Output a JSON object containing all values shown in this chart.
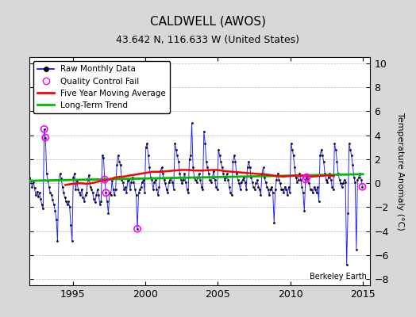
{
  "title": "CALDWELL (AWOS)",
  "subtitle": "43.642 N, 116.633 W (United States)",
  "ylabel": "Temperature Anomaly (°C)",
  "watermark": "Berkeley Earth",
  "xlim": [
    1992.0,
    2015.5
  ],
  "ylim": [
    -8.5,
    10.5
  ],
  "yticks": [
    -8,
    -6,
    -4,
    -2,
    0,
    2,
    4,
    6,
    8,
    10
  ],
  "xticks": [
    1995,
    2000,
    2005,
    2010,
    2015
  ],
  "fig_bg": "#d8d8d8",
  "plot_bg": "#ffffff",
  "raw_color": "#0000ff",
  "dot_color": "#000000",
  "ma_color": "#ff0000",
  "trend_color": "#00bb00",
  "qc_color": "#ff00ff",
  "raw_monthly": [
    [
      1992.0417,
      0.5
    ],
    [
      1992.125,
      0.2
    ],
    [
      1992.2083,
      -0.3
    ],
    [
      1992.2917,
      0.1
    ],
    [
      1992.375,
      -0.4
    ],
    [
      1992.4583,
      -1.0
    ],
    [
      1992.5417,
      -0.7
    ],
    [
      1992.625,
      -1.1
    ],
    [
      1992.7083,
      -0.8
    ],
    [
      1992.7917,
      -1.3
    ],
    [
      1992.875,
      -1.8
    ],
    [
      1992.9583,
      -2.1
    ],
    [
      1993.0417,
      4.5
    ],
    [
      1993.125,
      3.8
    ],
    [
      1993.2083,
      0.8
    ],
    [
      1993.2917,
      0.2
    ],
    [
      1993.375,
      -0.3
    ],
    [
      1993.4583,
      -0.8
    ],
    [
      1993.5417,
      -1.0
    ],
    [
      1993.625,
      -1.4
    ],
    [
      1993.7083,
      -1.8
    ],
    [
      1993.7917,
      -2.3
    ],
    [
      1993.875,
      -3.0
    ],
    [
      1993.9583,
      -4.8
    ],
    [
      1994.0417,
      0.3
    ],
    [
      1994.125,
      0.8
    ],
    [
      1994.2083,
      0.4
    ],
    [
      1994.2917,
      -0.3
    ],
    [
      1994.375,
      -0.8
    ],
    [
      1994.4583,
      -1.2
    ],
    [
      1994.5417,
      -1.5
    ],
    [
      1994.625,
      -1.8
    ],
    [
      1994.7083,
      -1.5
    ],
    [
      1994.7917,
      -2.0
    ],
    [
      1994.875,
      -3.5
    ],
    [
      1994.9583,
      -4.8
    ],
    [
      1995.0417,
      0.5
    ],
    [
      1995.125,
      0.8
    ],
    [
      1995.2083,
      -0.5
    ],
    [
      1995.2917,
      0.2
    ],
    [
      1995.375,
      -0.5
    ],
    [
      1995.4583,
      -0.8
    ],
    [
      1995.5417,
      -1.0
    ],
    [
      1995.625,
      -0.5
    ],
    [
      1995.7083,
      -1.2
    ],
    [
      1995.7917,
      -1.5
    ],
    [
      1995.875,
      -1.0
    ],
    [
      1995.9583,
      -0.8
    ],
    [
      1996.0417,
      0.3
    ],
    [
      1996.125,
      0.7
    ],
    [
      1996.2083,
      -0.3
    ],
    [
      1996.2917,
      -0.5
    ],
    [
      1996.375,
      -0.8
    ],
    [
      1996.4583,
      -1.3
    ],
    [
      1996.5417,
      -1.6
    ],
    [
      1996.625,
      -1.0
    ],
    [
      1996.7083,
      -0.5
    ],
    [
      1996.7917,
      -1.0
    ],
    [
      1996.875,
      -1.8
    ],
    [
      1996.9583,
      -1.5
    ],
    [
      1997.0417,
      2.3
    ],
    [
      1997.125,
      2.1
    ],
    [
      1997.2083,
      0.3
    ],
    [
      1997.2917,
      -0.8
    ],
    [
      1997.375,
      -1.5
    ],
    [
      1997.4583,
      -2.5
    ],
    [
      1997.5417,
      -0.8
    ],
    [
      1997.625,
      -1.0
    ],
    [
      1997.7083,
      0.2
    ],
    [
      1997.7917,
      -0.5
    ],
    [
      1997.875,
      -1.0
    ],
    [
      1997.9583,
      -0.5
    ],
    [
      1998.0417,
      1.5
    ],
    [
      1998.125,
      2.3
    ],
    [
      1998.2083,
      1.8
    ],
    [
      1998.2917,
      1.5
    ],
    [
      1998.375,
      0.3
    ],
    [
      1998.4583,
      0.1
    ],
    [
      1998.5417,
      -0.5
    ],
    [
      1998.625,
      -0.3
    ],
    [
      1998.7083,
      -0.8
    ],
    [
      1998.7917,
      0.2
    ],
    [
      1998.875,
      0.3
    ],
    [
      1998.9583,
      -0.5
    ],
    [
      1999.0417,
      0.1
    ],
    [
      1999.125,
      0.5
    ],
    [
      1999.2083,
      0.1
    ],
    [
      1999.2917,
      -0.5
    ],
    [
      1999.375,
      -1.0
    ],
    [
      1999.4583,
      -3.8
    ],
    [
      1999.5417,
      -0.8
    ],
    [
      1999.625,
      -0.5
    ],
    [
      1999.7083,
      -0.3
    ],
    [
      1999.7917,
      0.1
    ],
    [
      1999.875,
      0.3
    ],
    [
      1999.9583,
      -0.8
    ],
    [
      2000.0417,
      3.0
    ],
    [
      2000.125,
      3.3
    ],
    [
      2000.2083,
      2.3
    ],
    [
      2000.2917,
      1.3
    ],
    [
      2000.375,
      0.5
    ],
    [
      2000.4583,
      0.3
    ],
    [
      2000.5417,
      -0.5
    ],
    [
      2000.625,
      0.1
    ],
    [
      2000.7083,
      0.3
    ],
    [
      2000.7917,
      -0.5
    ],
    [
      2000.875,
      -1.0
    ],
    [
      2000.9583,
      -0.3
    ],
    [
      2001.0417,
      1.0
    ],
    [
      2001.125,
      1.3
    ],
    [
      2001.2083,
      0.8
    ],
    [
      2001.2917,
      0.3
    ],
    [
      2001.375,
      0.0
    ],
    [
      2001.4583,
      -0.5
    ],
    [
      2001.5417,
      -0.8
    ],
    [
      2001.625,
      0.1
    ],
    [
      2001.7083,
      0.3
    ],
    [
      2001.7917,
      0.5
    ],
    [
      2001.875,
      0.1
    ],
    [
      2001.9583,
      -0.5
    ],
    [
      2002.0417,
      3.3
    ],
    [
      2002.125,
      2.8
    ],
    [
      2002.2083,
      2.3
    ],
    [
      2002.2917,
      1.8
    ],
    [
      2002.375,
      0.8
    ],
    [
      2002.4583,
      0.3
    ],
    [
      2002.5417,
      0.0
    ],
    [
      2002.625,
      0.3
    ],
    [
      2002.7083,
      0.8
    ],
    [
      2002.7917,
      0.1
    ],
    [
      2002.875,
      -0.5
    ],
    [
      2002.9583,
      -0.8
    ],
    [
      2003.0417,
      2.0
    ],
    [
      2003.125,
      2.3
    ],
    [
      2003.2083,
      5.0
    ],
    [
      2003.2917,
      1.3
    ],
    [
      2003.375,
      0.5
    ],
    [
      2003.4583,
      0.3
    ],
    [
      2003.5417,
      0.1
    ],
    [
      2003.625,
      0.5
    ],
    [
      2003.7083,
      0.8
    ],
    [
      2003.7917,
      0.3
    ],
    [
      2003.875,
      -0.3
    ],
    [
      2003.9583,
      -0.5
    ],
    [
      2004.0417,
      4.3
    ],
    [
      2004.125,
      3.3
    ],
    [
      2004.2083,
      1.8
    ],
    [
      2004.2917,
      1.3
    ],
    [
      2004.375,
      0.8
    ],
    [
      2004.4583,
      0.3
    ],
    [
      2004.5417,
      0.1
    ],
    [
      2004.625,
      0.5
    ],
    [
      2004.7083,
      1.0
    ],
    [
      2004.7917,
      0.3
    ],
    [
      2004.875,
      -0.3
    ],
    [
      2004.9583,
      -0.5
    ],
    [
      2005.0417,
      2.8
    ],
    [
      2005.125,
      2.3
    ],
    [
      2005.2083,
      1.8
    ],
    [
      2005.2917,
      1.3
    ],
    [
      2005.375,
      0.8
    ],
    [
      2005.4583,
      0.3
    ],
    [
      2005.5417,
      0.5
    ],
    [
      2005.625,
      0.8
    ],
    [
      2005.7083,
      0.3
    ],
    [
      2005.7917,
      -0.3
    ],
    [
      2005.875,
      -0.8
    ],
    [
      2005.9583,
      -1.0
    ],
    [
      2006.0417,
      1.8
    ],
    [
      2006.125,
      2.3
    ],
    [
      2006.2083,
      1.8
    ],
    [
      2006.2917,
      0.8
    ],
    [
      2006.375,
      0.3
    ],
    [
      2006.4583,
      0.0
    ],
    [
      2006.5417,
      -0.5
    ],
    [
      2006.625,
      0.1
    ],
    [
      2006.7083,
      0.3
    ],
    [
      2006.7917,
      0.5
    ],
    [
      2006.875,
      0.1
    ],
    [
      2006.9583,
      -0.5
    ],
    [
      2007.0417,
      1.3
    ],
    [
      2007.125,
      1.8
    ],
    [
      2007.2083,
      1.3
    ],
    [
      2007.2917,
      0.5
    ],
    [
      2007.375,
      0.1
    ],
    [
      2007.4583,
      -0.3
    ],
    [
      2007.5417,
      -0.5
    ],
    [
      2007.625,
      0.0
    ],
    [
      2007.7083,
      0.3
    ],
    [
      2007.7917,
      -0.3
    ],
    [
      2007.875,
      -0.5
    ],
    [
      2007.9583,
      -1.0
    ],
    [
      2008.0417,
      0.8
    ],
    [
      2008.125,
      1.3
    ],
    [
      2008.2083,
      0.5
    ],
    [
      2008.2917,
      0.1
    ],
    [
      2008.375,
      -0.3
    ],
    [
      2008.4583,
      -0.5
    ],
    [
      2008.5417,
      -1.0
    ],
    [
      2008.625,
      -0.5
    ],
    [
      2008.7083,
      -0.3
    ],
    [
      2008.7917,
      -0.8
    ],
    [
      2008.875,
      -3.3
    ],
    [
      2008.9583,
      -0.5
    ],
    [
      2009.0417,
      0.3
    ],
    [
      2009.125,
      0.8
    ],
    [
      2009.2083,
      0.3
    ],
    [
      2009.2917,
      0.0
    ],
    [
      2009.375,
      -0.5
    ],
    [
      2009.4583,
      -0.5
    ],
    [
      2009.5417,
      -0.8
    ],
    [
      2009.625,
      -0.3
    ],
    [
      2009.7083,
      -0.5
    ],
    [
      2009.7917,
      -1.0
    ],
    [
      2009.875,
      -0.3
    ],
    [
      2009.9583,
      -0.8
    ],
    [
      2010.0417,
      3.3
    ],
    [
      2010.125,
      2.8
    ],
    [
      2010.2083,
      2.3
    ],
    [
      2010.2917,
      1.3
    ],
    [
      2010.375,
      0.5
    ],
    [
      2010.4583,
      0.1
    ],
    [
      2010.5417,
      0.3
    ],
    [
      2010.625,
      0.8
    ],
    [
      2010.7083,
      0.3
    ],
    [
      2010.7917,
      -0.3
    ],
    [
      2010.875,
      -0.8
    ],
    [
      2010.9583,
      -2.3
    ],
    [
      2011.0417,
      0.3
    ],
    [
      2011.125,
      0.5
    ],
    [
      2011.2083,
      0.3
    ],
    [
      2011.2917,
      0.0
    ],
    [
      2011.375,
      -0.5
    ],
    [
      2011.4583,
      -0.5
    ],
    [
      2011.5417,
      -0.8
    ],
    [
      2011.625,
      -0.3
    ],
    [
      2011.7083,
      -0.5
    ],
    [
      2011.7917,
      -0.8
    ],
    [
      2011.875,
      -0.3
    ],
    [
      2011.9583,
      -1.5
    ],
    [
      2012.0417,
      2.3
    ],
    [
      2012.125,
      2.8
    ],
    [
      2012.2083,
      2.3
    ],
    [
      2012.2917,
      1.8
    ],
    [
      2012.375,
      0.8
    ],
    [
      2012.4583,
      0.3
    ],
    [
      2012.5417,
      0.1
    ],
    [
      2012.625,
      0.5
    ],
    [
      2012.7083,
      0.8
    ],
    [
      2012.7917,
      0.3
    ],
    [
      2012.875,
      -0.3
    ],
    [
      2012.9583,
      -0.5
    ],
    [
      2013.0417,
      3.3
    ],
    [
      2013.125,
      2.8
    ],
    [
      2013.2083,
      1.8
    ],
    [
      2013.2917,
      0.8
    ],
    [
      2013.375,
      0.3
    ],
    [
      2013.4583,
      0.0
    ],
    [
      2013.5417,
      -0.3
    ],
    [
      2013.625,
      0.0
    ],
    [
      2013.7083,
      0.3
    ],
    [
      2013.7917,
      0.1
    ],
    [
      2013.875,
      -6.8
    ],
    [
      2013.9583,
      -2.5
    ],
    [
      2014.0417,
      3.3
    ],
    [
      2014.125,
      2.8
    ],
    [
      2014.2083,
      2.3
    ],
    [
      2014.2917,
      1.5
    ],
    [
      2014.375,
      0.5
    ],
    [
      2014.4583,
      0.1
    ],
    [
      2014.5417,
      -5.5
    ],
    [
      2014.625,
      0.3
    ],
    [
      2014.7083,
      0.5
    ],
    [
      2014.7917,
      0.8
    ],
    [
      2014.875,
      0.3
    ],
    [
      2014.9583,
      -0.3
    ]
  ],
  "qc_fail_xy": [
    [
      1993.0417,
      4.5
    ],
    [
      1993.125,
      3.8
    ],
    [
      1997.2083,
      0.3
    ],
    [
      1997.2917,
      -0.8
    ],
    [
      1999.4583,
      -3.8
    ],
    [
      2011.0417,
      0.3
    ],
    [
      2011.125,
      0.5
    ],
    [
      2014.9583,
      -0.3
    ]
  ],
  "moving_avg_x": [
    1994.5,
    1995.0,
    1995.5,
    1996.0,
    1996.5,
    1997.0,
    1997.5,
    1998.0,
    1998.5,
    1999.0,
    1999.5,
    2000.0,
    2000.5,
    2001.0,
    2001.5,
    2002.0,
    2002.5,
    2003.0,
    2003.5,
    2004.0,
    2004.5,
    2005.0,
    2005.5,
    2006.0,
    2006.5,
    2007.0,
    2007.5,
    2008.0,
    2008.5,
    2009.0,
    2009.5,
    2010.0,
    2010.5,
    2011.0,
    2011.5,
    2012.0,
    2012.5,
    2013.0
  ],
  "moving_avg_y": [
    -0.15,
    -0.05,
    0.0,
    -0.05,
    0.05,
    0.2,
    0.3,
    0.5,
    0.55,
    0.65,
    0.75,
    0.85,
    0.95,
    0.95,
    1.0,
    1.05,
    1.1,
    1.1,
    1.05,
    1.05,
    1.1,
    1.1,
    1.0,
    0.95,
    0.9,
    0.85,
    0.8,
    0.75,
    0.7,
    0.6,
    0.55,
    0.6,
    0.65,
    0.6,
    0.55,
    0.6,
    0.65,
    0.6
  ],
  "trend_x": [
    1992.0,
    2015.0
  ],
  "trend_y": [
    0.2,
    0.75
  ],
  "title_fontsize": 11,
  "subtitle_fontsize": 9,
  "tick_fontsize": 9,
  "ylabel_fontsize": 8,
  "watermark_fontsize": 7,
  "legend_fontsize": 7.5
}
